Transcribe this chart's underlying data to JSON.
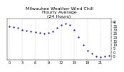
{
  "title": "Milwaukee Weather Wind Chill\nHourly Average\n(24 Hours)",
  "hours": [
    0,
    1,
    2,
    3,
    4,
    5,
    6,
    7,
    8,
    9,
    10,
    11,
    12,
    13,
    14,
    15,
    16,
    17,
    18,
    19,
    20,
    21,
    22,
    23
  ],
  "wind_chill": [
    34,
    33,
    32,
    30,
    29,
    28,
    27,
    26,
    25,
    26,
    28,
    32,
    36,
    38,
    36,
    30,
    20,
    10,
    2,
    -2,
    -5,
    -6,
    -5,
    -4
  ],
  "ylim": [
    -10,
    45
  ],
  "y_ticks": [
    -5,
    0,
    5,
    10,
    15,
    20,
    25,
    30,
    35,
    40
  ],
  "x_tick_positions": [
    0,
    3,
    6,
    9,
    12,
    15,
    18,
    21
  ],
  "x_tick_labels": [
    "0",
    "3",
    "6",
    "9",
    "12",
    "15",
    "18",
    "21"
  ],
  "line_color": "#0000bb",
  "bg_color": "#ffffff",
  "plot_bg": "#ffffff",
  "grid_color": "#aaaaaa",
  "title_fontsize": 4.5,
  "tick_fontsize": 3.5,
  "marker_size": 1.2,
  "line_width": 0.0
}
